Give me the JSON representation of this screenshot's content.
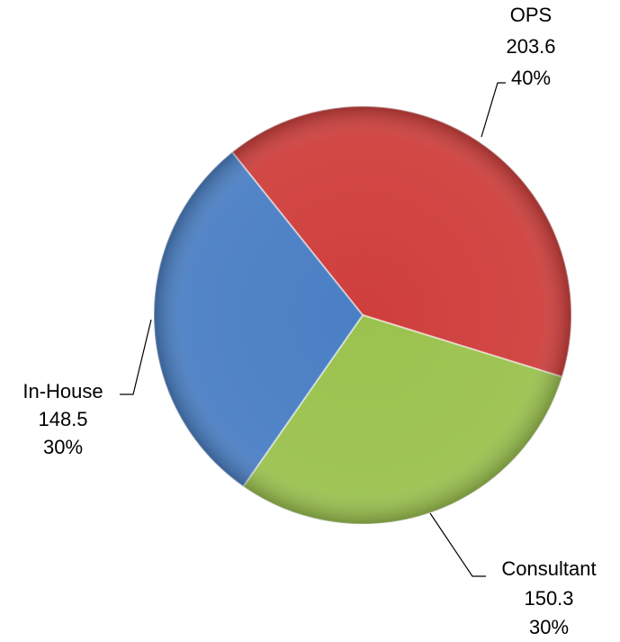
{
  "chart_data": {
    "type": "pie",
    "categories": [
      "OPS",
      "Consultant",
      "In-House"
    ],
    "values": [
      203.6,
      150.3,
      148.5
    ],
    "percent_labels": [
      "40%",
      "30%",
      "30%"
    ],
    "colors": [
      "#cf3f3c",
      "#9bc24e",
      "#4a7fc4"
    ]
  }
}
